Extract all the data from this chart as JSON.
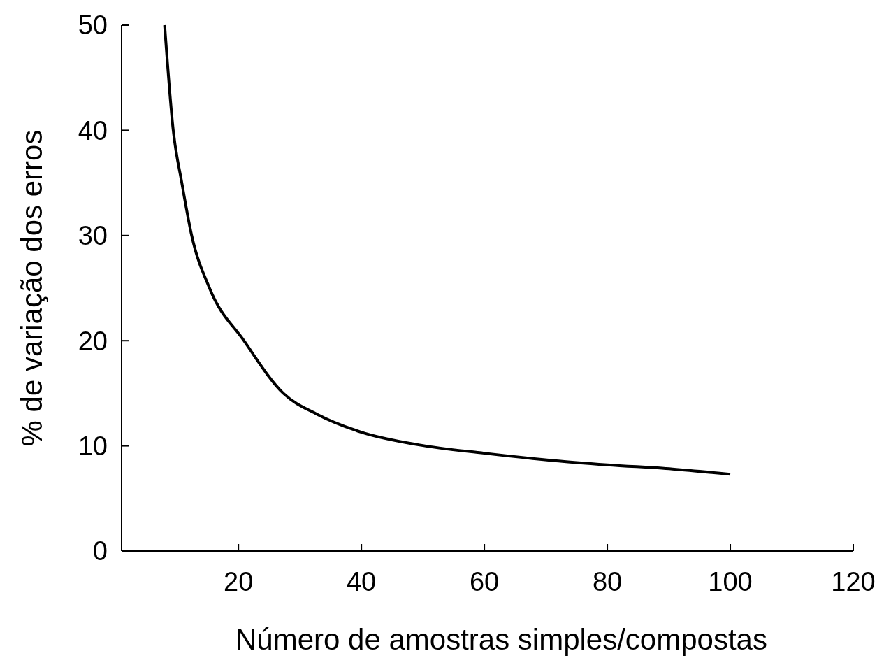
{
  "chart_data": {
    "type": "line",
    "xlabel": "Número de amostras simples/compostas",
    "ylabel": "% de variação dos erros",
    "xlim": [
      1,
      120
    ],
    "xticks": [
      20,
      40,
      60,
      80,
      100,
      120
    ],
    "ylim": [
      0,
      50
    ],
    "yticks": [
      0,
      10,
      20,
      30,
      40,
      50
    ],
    "series": [
      {
        "color": "#000000",
        "x": [
          8,
          9.4,
          10.8,
          12.4,
          15.3,
          20.9,
          27.3,
          32.8,
          40,
          49.3,
          60,
          71.3,
          80,
          90.6,
          100
        ],
        "values": [
          50,
          40,
          35,
          30,
          25,
          20,
          15,
          13,
          11.3,
          10.1,
          9.3,
          8.6,
          8.2,
          7.8,
          7.3
        ]
      }
    ],
    "grid": false,
    "marker": "none",
    "line_style": "solid"
  }
}
